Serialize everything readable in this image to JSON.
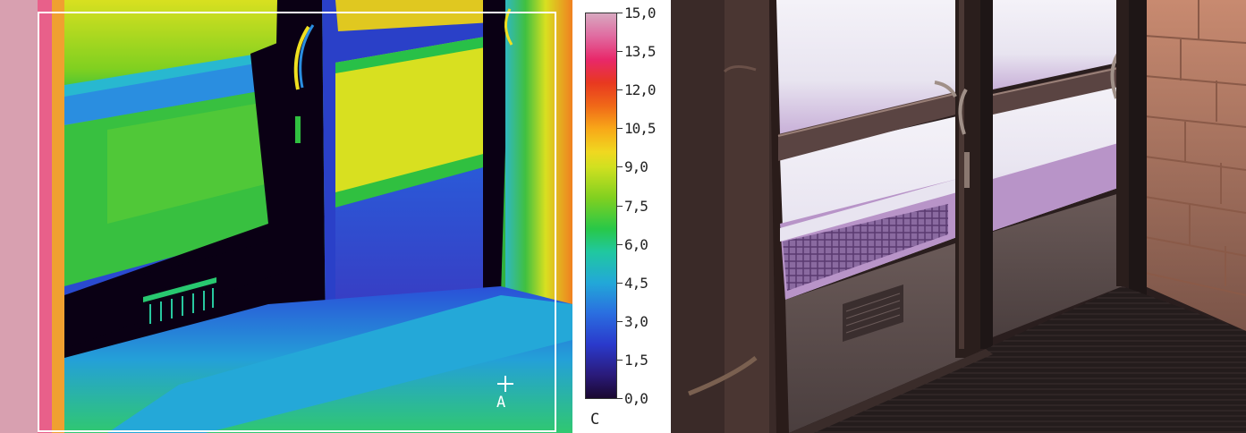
{
  "thermal_image": {
    "description_icon": "thermal-camera-view",
    "unit": "C",
    "cursor_marker": "A",
    "scale_ticks": [
      "15,0",
      "13,5",
      "12,0",
      "10,5",
      "9,0",
      "7,5",
      "6,0",
      "4,5",
      "3,0",
      "1,5",
      "0,0"
    ],
    "scale_min": 0.0,
    "scale_max": 15.0,
    "colors": {
      "cold": "#1a0830",
      "blue": "#2a3acc",
      "cyan": "#22a8d8",
      "green": "#28c848",
      "yellow": "#f0d820",
      "orange": "#f06818",
      "red": "#e83820",
      "hot": "#d8a8c0"
    }
  },
  "photo_image": {
    "description_icon": "glass-double-door-photo"
  }
}
